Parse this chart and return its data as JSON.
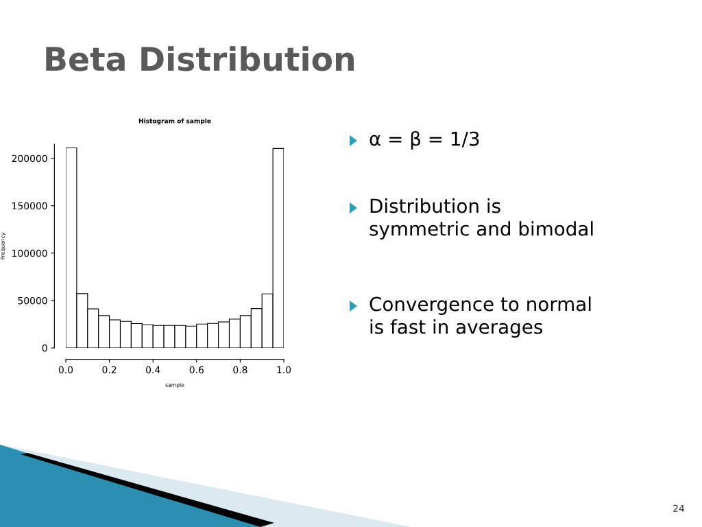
{
  "chart_data": {
    "type": "histogram",
    "title": "Histogram of sample",
    "xlabel": "sample",
    "ylabel": "Frequency",
    "bins": [
      0.0,
      0.05,
      0.1,
      0.15,
      0.2,
      0.25,
      0.3,
      0.35,
      0.4,
      0.45,
      0.5,
      0.55,
      0.6,
      0.65,
      0.7,
      0.75,
      0.8,
      0.85,
      0.9,
      0.95,
      1.0
    ],
    "values": [
      211000,
      57300,
      41200,
      34100,
      29600,
      28100,
      25700,
      24400,
      23700,
      23700,
      23700,
      23000,
      25200,
      25900,
      27400,
      30400,
      34100,
      41500,
      57000,
      210400
    ],
    "color": "#ffffff",
    "xlim": [
      0,
      1
    ],
    "xticks": [
      {
        "value": 0,
        "label": "0.0"
      },
      0.2,
      0.4,
      0.6,
      0.8,
      {
        "value": 1,
        "label": "1.0"
      }
    ],
    "ylim": [
      0,
      215000
    ],
    "yticks": [
      0,
      50000,
      100000,
      150000,
      200000
    ],
    "grid": false,
    "legend": false,
    "annotations": [
      "Beta Distribution",
      "α = β = 1/3",
      "Distribution is\nsymmetric and bimodal",
      "Convergence to normal\nis fast in averages",
      "24"
    ]
  }
}
